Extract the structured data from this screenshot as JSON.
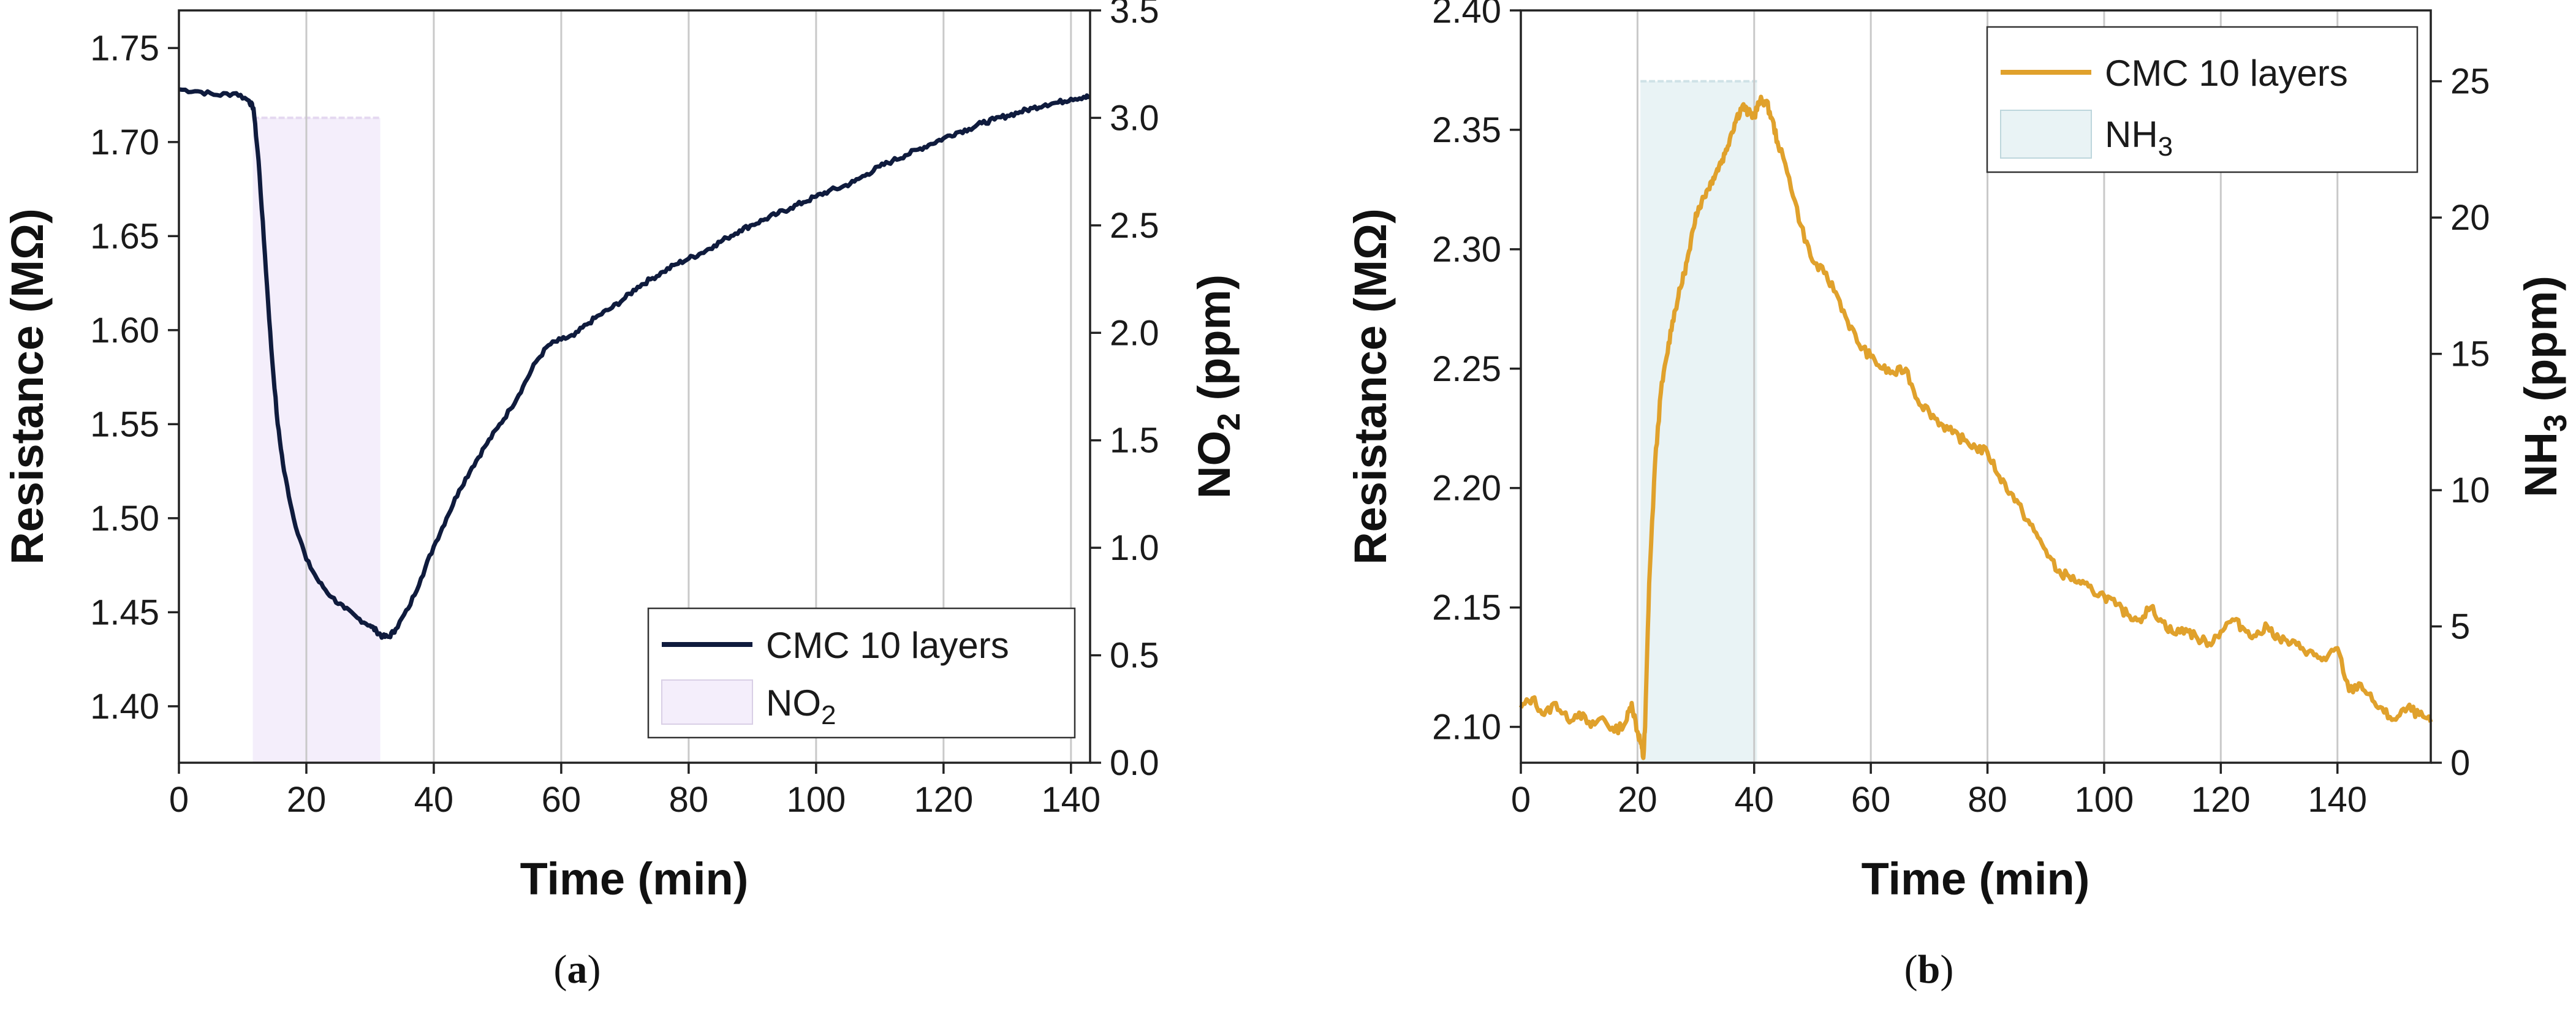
{
  "chart_data": [
    {
      "type": "line",
      "caption": "a",
      "xlabel": "Time (min)",
      "ylabel": "Resistance (MΩ)",
      "y2label_main": "NO",
      "y2label_sub": "2",
      "y2label_tail": " (ppm)",
      "xlim": [
        0,
        143
      ],
      "ylim": [
        1.37,
        1.77
      ],
      "y2lim": [
        0,
        3.5
      ],
      "xticks": [
        "0",
        "20",
        "40",
        "60",
        "80",
        "100",
        "120",
        "140"
      ],
      "yticks": [
        "1.40",
        "1.45",
        "1.50",
        "1.55",
        "1.60",
        "1.65",
        "1.70",
        "1.75"
      ],
      "y2ticks": [
        "0.0",
        "0.5",
        "1.0",
        "1.5",
        "2.0",
        "2.5",
        "3.0",
        "3.5"
      ],
      "grid_x": true,
      "legend_position": "bottom-right",
      "series": [
        {
          "name": "CMC 10 layers",
          "color": "#0f1b3d",
          "x": [
            0,
            3,
            6,
            9,
            11,
            11.7,
            12.5,
            13.5,
            14.5,
            15.5,
            16.5,
            18,
            20,
            22,
            24,
            26,
            28,
            30,
            31,
            32,
            33,
            34,
            36,
            38,
            40,
            42,
            44,
            46,
            48,
            50,
            52,
            54,
            56,
            58,
            60,
            62,
            64,
            66,
            68,
            70,
            72,
            74,
            76,
            78,
            80,
            82,
            84,
            86,
            88,
            90,
            92,
            94,
            96,
            98,
            100,
            102,
            104,
            106,
            108,
            110,
            112,
            114,
            116,
            118,
            120,
            122,
            124,
            126,
            128,
            130,
            132,
            134,
            136,
            138,
            140,
            142,
            143
          ],
          "y": [
            1.728,
            1.727,
            1.725,
            1.726,
            1.722,
            1.718,
            1.69,
            1.64,
            1.59,
            1.55,
            1.525,
            1.5,
            1.478,
            1.466,
            1.458,
            1.452,
            1.447,
            1.443,
            1.44,
            1.437,
            1.437,
            1.441,
            1.452,
            1.468,
            1.485,
            1.5,
            1.515,
            1.527,
            1.538,
            1.548,
            1.558,
            1.57,
            1.583,
            1.592,
            1.595,
            1.597,
            1.603,
            1.608,
            1.612,
            1.617,
            1.623,
            1.627,
            1.631,
            1.635,
            1.638,
            1.641,
            1.645,
            1.649,
            1.653,
            1.656,
            1.659,
            1.662,
            1.665,
            1.668,
            1.671,
            1.674,
            1.676,
            1.679,
            1.683,
            1.687,
            1.69,
            1.693,
            1.696,
            1.699,
            1.702,
            1.705,
            1.707,
            1.71,
            1.712,
            1.714,
            1.716,
            1.718,
            1.72,
            1.721,
            1.723,
            1.724,
            1.724
          ]
        }
      ],
      "exposure": {
        "name": "NO2",
        "legend_main": "NO",
        "legend_sub": "2",
        "start": 11.6,
        "end": 31.6,
        "level": 3.0,
        "color": "#f4eefb"
      }
    },
    {
      "type": "line",
      "caption": "b",
      "xlabel": "Time (min)",
      "ylabel": "Resistance (MΩ)",
      "y2label_main": "NH",
      "y2label_sub": "3",
      "y2label_tail": " (ppm)",
      "xlim": [
        0,
        156
      ],
      "ylim": [
        2.085,
        2.4
      ],
      "y2lim": [
        0,
        27.6
      ],
      "xticks": [
        "0",
        "20",
        "40",
        "60",
        "80",
        "100",
        "120",
        "140"
      ],
      "yticks": [
        "2.10",
        "2.15",
        "2.20",
        "2.25",
        "2.30",
        "2.35",
        "2.40"
      ],
      "y2ticks": [
        "0",
        "5",
        "10",
        "15",
        "20",
        "25"
      ],
      "grid_x": true,
      "legend_position": "top-right",
      "series": [
        {
          "name": "CMC 10 layers",
          "color": "#e0a12c",
          "x": [
            0,
            2,
            4,
            6,
            8,
            10,
            12,
            14,
            16,
            18,
            19,
            20,
            20.5,
            21,
            21.3,
            22,
            23,
            24,
            25,
            26,
            27,
            28,
            29,
            30,
            31,
            32,
            33,
            34,
            35,
            36,
            37,
            38,
            39,
            40,
            41,
            42,
            43,
            44,
            46,
            48,
            50,
            52,
            54,
            56,
            58,
            60,
            62,
            64,
            66,
            68,
            70,
            72,
            74,
            76,
            78,
            80,
            82,
            84,
            86,
            88,
            90,
            92,
            94,
            96,
            98,
            100,
            102,
            104,
            106,
            108,
            110,
            112,
            114,
            116,
            118,
            120,
            122,
            124,
            126,
            128,
            130,
            132,
            134,
            136,
            138,
            140,
            142,
            144,
            146,
            148,
            150,
            152,
            154,
            156
          ],
          "y": [
            2.108,
            2.112,
            2.105,
            2.11,
            2.103,
            2.106,
            2.1,
            2.104,
            2.098,
            2.102,
            2.11,
            2.098,
            2.094,
            2.087,
            2.1,
            2.16,
            2.21,
            2.24,
            2.255,
            2.27,
            2.28,
            2.29,
            2.3,
            2.315,
            2.32,
            2.325,
            2.33,
            2.335,
            2.34,
            2.348,
            2.355,
            2.36,
            2.357,
            2.356,
            2.362,
            2.362,
            2.355,
            2.345,
            2.33,
            2.31,
            2.295,
            2.29,
            2.282,
            2.27,
            2.26,
            2.255,
            2.25,
            2.248,
            2.25,
            2.237,
            2.232,
            2.227,
            2.223,
            2.22,
            2.217,
            2.215,
            2.205,
            2.198,
            2.19,
            2.182,
            2.174,
            2.165,
            2.163,
            2.16,
            2.157,
            2.155,
            2.151,
            2.147,
            2.145,
            2.15,
            2.144,
            2.139,
            2.141,
            2.137,
            2.135,
            2.14,
            2.145,
            2.141,
            2.138,
            2.142,
            2.137,
            2.135,
            2.133,
            2.13,
            2.128,
            2.133,
            2.115,
            2.118,
            2.111,
            2.106,
            2.103,
            2.108,
            2.105,
            2.102
          ]
        }
      ],
      "exposure": {
        "name": "NH3",
        "legend_main": "NH",
        "legend_sub": "3",
        "start": 20.5,
        "end": 40.5,
        "level": 25.0,
        "color": "#e9f3f5"
      }
    }
  ]
}
